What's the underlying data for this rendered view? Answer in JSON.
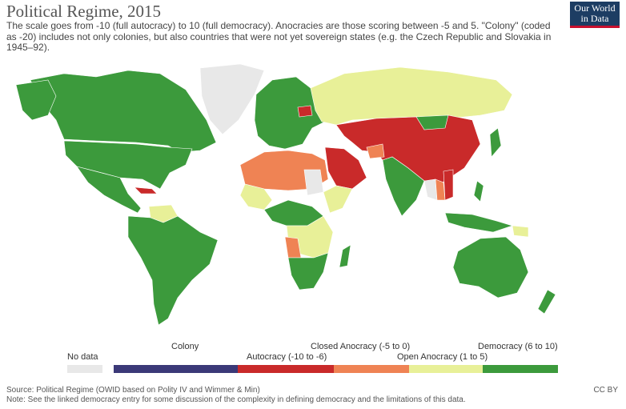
{
  "header": {
    "title": "Political Regime, 2015",
    "subtitle": "The scale goes from -10 (full autocracy) to 10 (full democracy). Anocracies are those scoring between -5 and 5. \"Colony\" (coded as -20) includes not only colonies, but also countries that were not yet sovereign states (e.g. the Czech Republic and Slovakia in 1945–92)."
  },
  "logo": {
    "line1": "Our World",
    "line2": "in Data"
  },
  "colors": {
    "no_data": "#e8e8e8",
    "colony": "#3b3978",
    "autocracy": "#c92a2a",
    "closed_anocracy": "#ef8354",
    "open_anocracy": "#e8f098",
    "democracy": "#3c9a3c",
    "ocean": "#ffffff"
  },
  "legend": {
    "no_data": "No data",
    "colony": "Colony",
    "autocracy": "Autocracy (-10 to -6)",
    "closed_anocracy": "Closed Anocracy (-5 to 0)",
    "open_anocracy": "Open Anocracy (1 to 5)",
    "democracy": "Democracy (6 to 10)"
  },
  "footer": {
    "source": "Source: Political Regime (OWID based on Polity IV and Wimmer & Min)",
    "note": "Note: See the linked democracy entry for some discussion of the complexity in defining democracy and the limitations of this data.",
    "license": "CC BY"
  }
}
